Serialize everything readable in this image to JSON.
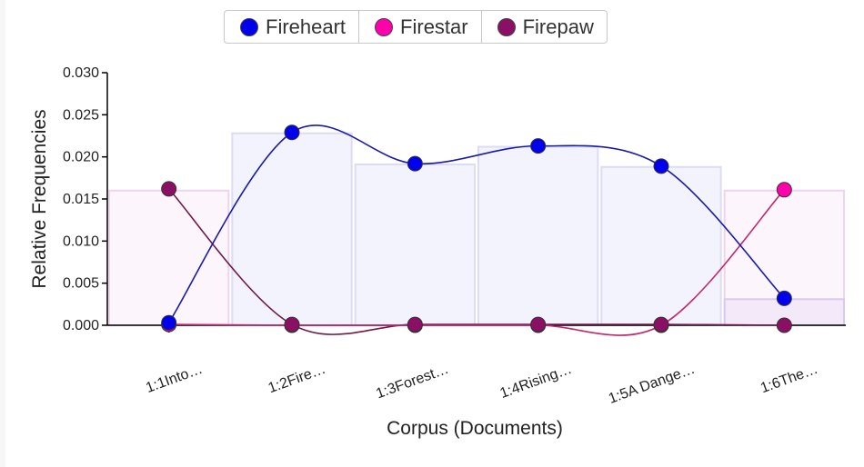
{
  "chart_data": {
    "type": "line",
    "xlabel": "Corpus (Documents)",
    "ylabel": "Relative Frequencies",
    "ylim": [
      0,
      0.03
    ],
    "yticks": [
      "0.000",
      "0.005",
      "0.010",
      "0.015",
      "0.020",
      "0.025",
      "0.030"
    ],
    "categories": [
      "1:1Into…",
      "1:2Fire…",
      "1:3Forest…",
      "1:4Rising…",
      "1:5A Dange…",
      "1:6The…"
    ],
    "bars": [
      {
        "values": [
          0.016,
          0.0228,
          0.0191,
          0.0212,
          0.0188,
          0.016
        ]
      },
      {
        "values": [
          0.0,
          0.0,
          0.0,
          0.0,
          0.0,
          0.0031
        ]
      }
    ],
    "series": [
      {
        "name": "Fireheart",
        "color": "#0000ee",
        "line_color": "#1a1aaa",
        "values": [
          0.0003,
          0.0229,
          0.0192,
          0.0213,
          0.0189,
          0.0032
        ]
      },
      {
        "name": "Firestar",
        "color": "#ff00aa",
        "line_color": "#c4266e",
        "values": [
          0.0001,
          0.0,
          0.0,
          0.0,
          0.0,
          0.0161
        ]
      },
      {
        "name": "Firepaw",
        "color": "#8b0f64",
        "line_color": "#6e1a48",
        "values": [
          0.0162,
          0.0001,
          0.0001,
          0.0001,
          0.0001,
          0.0
        ]
      }
    ]
  }
}
